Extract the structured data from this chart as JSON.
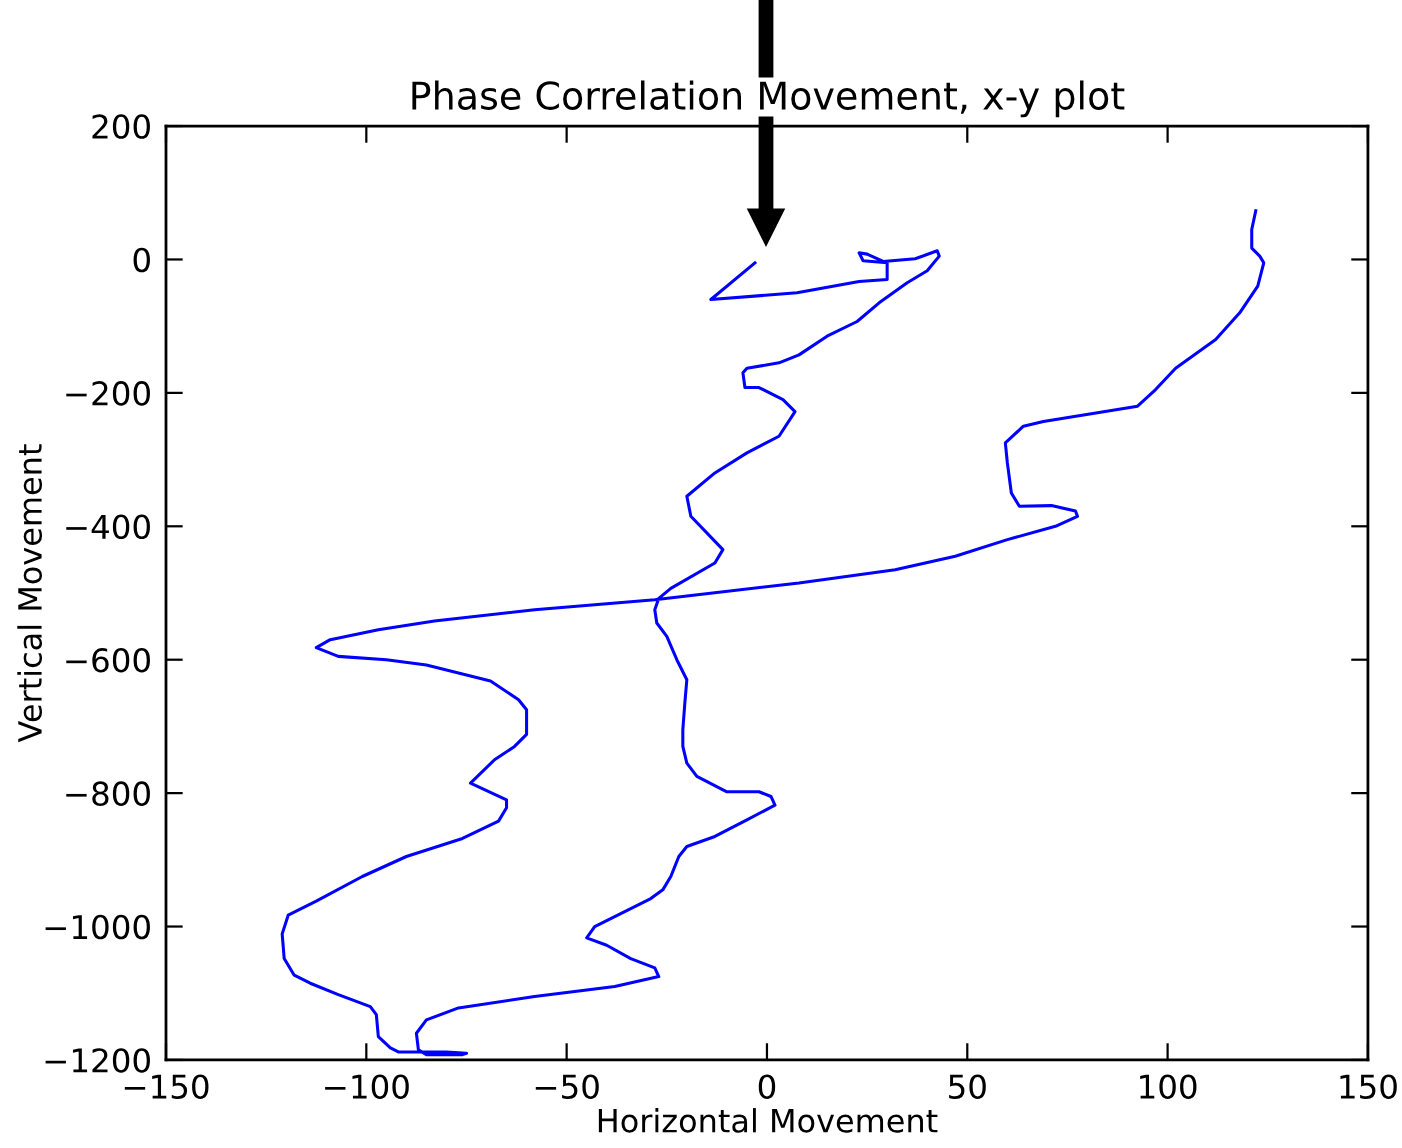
{
  "chart_data": {
    "type": "line",
    "title": "Phase Correlation Movement, x-y plot",
    "xlabel": "Horizontal Movement",
    "ylabel": "Vertical Movement",
    "x": [
      -3,
      -14,
      7.5,
      23,
      30,
      30,
      24,
      23,
      25,
      29,
      37,
      42.5,
      43,
      40,
      35,
      28,
      22.5,
      15,
      8,
      3,
      -5,
      -6,
      -5.5,
      -2,
      4,
      7,
      3,
      -5,
      -13,
      -20,
      -19,
      -11,
      -13,
      -24,
      -27,
      -28,
      -27.5,
      -25,
      -22.5,
      -20,
      -20.5,
      -21,
      -21,
      -20,
      -17.5,
      -10,
      -2,
      1,
      2,
      -5,
      -13,
      -20,
      -22,
      -24,
      -26,
      -29,
      -38,
      -43,
      -45,
      -40,
      -34,
      -28,
      -27,
      -38,
      -58,
      -77,
      -85,
      -87.5,
      -87,
      -85,
      -76,
      -75,
      -80,
      -92,
      -94,
      -97,
      -97.5,
      -99,
      -107,
      -114,
      -118,
      -120.5,
      -121,
      -119.5,
      -112.5,
      -101,
      -90,
      -76,
      -67,
      -65,
      -65,
      -74,
      -68,
      -63,
      -60,
      -60,
      -62,
      -69,
      -85,
      -95,
      -107,
      -112.5,
      -109,
      -97,
      -83,
      -58,
      -28,
      8,
      32,
      47,
      60,
      72,
      77.5,
      77,
      71,
      63,
      61,
      60,
      59.5,
      64,
      69,
      92.5,
      97,
      102,
      112,
      118,
      122.5,
      124,
      123,
      121,
      121,
      122
    ],
    "series": [
      {
        "color": "#0000ff",
        "values": [
          -5,
          -60,
          -50,
          -33,
          -30,
          -5,
          -2,
          10,
          8,
          -3,
          1,
          13,
          5,
          -17,
          -35,
          -65,
          -93,
          -115,
          -143,
          -155,
          -163,
          -170,
          -192,
          -192,
          -210,
          -228,
          -265,
          -290,
          -320,
          -355,
          -385,
          -435,
          -455,
          -493,
          -508,
          -525,
          -545,
          -565,
          -600,
          -630,
          -665,
          -705,
          -730,
          -755,
          -775,
          -798,
          -798,
          -805,
          -818,
          -840,
          -865,
          -880,
          -895,
          -925,
          -945,
          -958,
          -985,
          -1000,
          -1017,
          -1028,
          -1048,
          -1062,
          -1075,
          -1090,
          -1105,
          -1122,
          -1140,
          -1160,
          -1185,
          -1192,
          -1192,
          -1190,
          -1188,
          -1188,
          -1182,
          -1165,
          -1132,
          -1120,
          -1102,
          -1085,
          -1073,
          -1048,
          -1011,
          -983,
          -962,
          -925,
          -895,
          -868,
          -842,
          -822,
          -810,
          -785,
          -750,
          -730,
          -712,
          -675,
          -660,
          -632,
          -608,
          -600,
          -595,
          -582,
          -570,
          -555,
          -542,
          -525,
          -510,
          -485,
          -465,
          -445,
          -420,
          -400,
          -385,
          -377,
          -369,
          -370,
          -350,
          -305,
          -275,
          -250,
          -243,
          -220,
          -195,
          -163,
          -120,
          -80,
          -40,
          -5,
          5,
          17,
          45,
          73
        ]
      }
    ],
    "xlim": [
      -150,
      150
    ],
    "xticks": [
      -150,
      -100,
      -50,
      0,
      50,
      100,
      150
    ],
    "ylim": [
      -1200,
      200
    ],
    "yticks": [
      -1200,
      -1000,
      -800,
      -600,
      -400,
      -200,
      0,
      200
    ]
  }
}
